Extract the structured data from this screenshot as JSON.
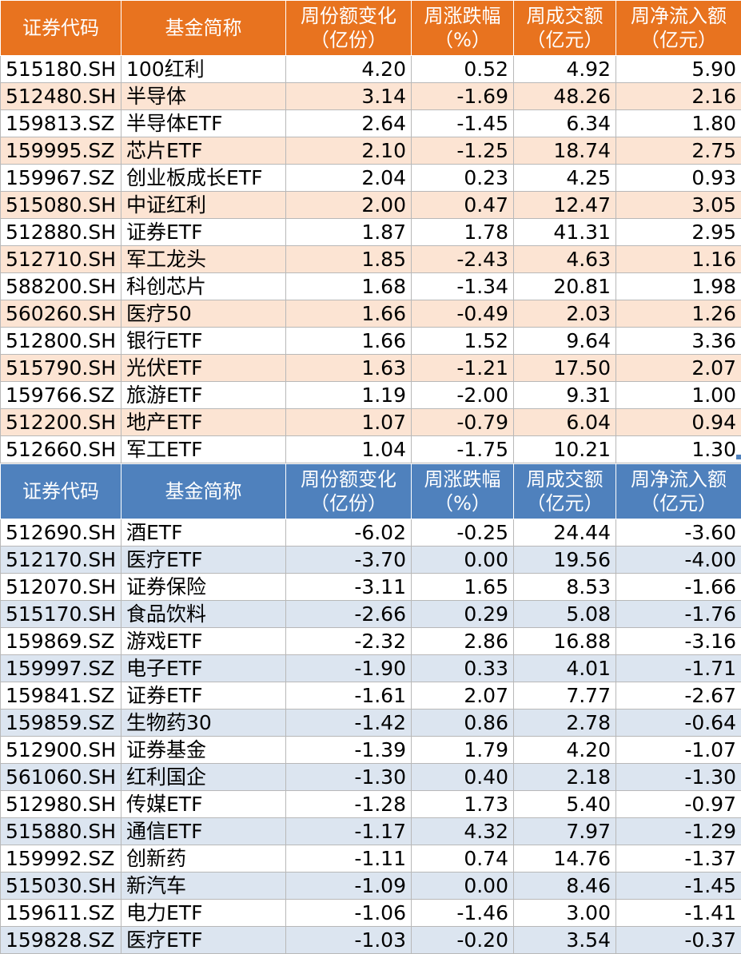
{
  "header": {
    "code": "证券代码",
    "name": "基金简称",
    "share_change": [
      "周份额变化",
      "（亿份）"
    ],
    "pct_change": [
      "周涨跌幅",
      "（%）"
    ],
    "volume": [
      "周成交额",
      "（亿元）"
    ],
    "net_inflow": [
      "周净流入额",
      "（亿元）"
    ]
  },
  "colors": {
    "top_header": "#e8731f",
    "top_alt_row": "#fce4d3",
    "bottom_header": "#4f81bd",
    "bottom_alt_row": "#dce5f0"
  },
  "top_rows": [
    [
      "515180.SH",
      "100红利",
      "4.20",
      "0.52",
      "4.92",
      "5.90"
    ],
    [
      "512480.SH",
      "半导体",
      "3.14",
      "-1.69",
      "48.26",
      "2.16"
    ],
    [
      "159813.SZ",
      "半导体ETF",
      "2.64",
      "-1.45",
      "6.34",
      "1.80"
    ],
    [
      "159995.SZ",
      "芯片ETF",
      "2.10",
      "-1.25",
      "18.74",
      "2.75"
    ],
    [
      "159967.SZ",
      "创业板成长ETF",
      "2.04",
      "0.23",
      "4.25",
      "0.93"
    ],
    [
      "515080.SH",
      "中证红利",
      "2.00",
      "0.47",
      "12.47",
      "3.05"
    ],
    [
      "512880.SH",
      "证券ETF",
      "1.87",
      "1.78",
      "41.31",
      "2.95"
    ],
    [
      "512710.SH",
      "军工龙头",
      "1.85",
      "-2.43",
      "4.63",
      "1.16"
    ],
    [
      "588200.SH",
      "科创芯片",
      "1.68",
      "-1.34",
      "20.81",
      "1.98"
    ],
    [
      "560260.SH",
      "医疗50",
      "1.66",
      "-0.49",
      "2.03",
      "1.26"
    ],
    [
      "512800.SH",
      "银行ETF",
      "1.66",
      "1.52",
      "9.64",
      "3.36"
    ],
    [
      "515790.SH",
      "光伏ETF",
      "1.63",
      "-1.21",
      "17.50",
      "2.07"
    ],
    [
      "159766.SZ",
      "旅游ETF",
      "1.19",
      "-2.00",
      "9.31",
      "1.00"
    ],
    [
      "512200.SH",
      "地产ETF",
      "1.07",
      "-0.79",
      "6.04",
      "0.94"
    ],
    [
      "512660.SH",
      "军工ETF",
      "1.04",
      "-1.75",
      "10.21",
      "1.30"
    ]
  ],
  "bottom_rows": [
    [
      "512690.SH",
      "酒ETF",
      "-6.02",
      "-0.25",
      "24.44",
      "-3.60"
    ],
    [
      "512170.SH",
      "医疗ETF",
      "-3.70",
      "0.00",
      "19.56",
      "-4.00"
    ],
    [
      "512070.SH",
      "证券保险",
      "-3.11",
      "1.65",
      "8.53",
      "-1.66"
    ],
    [
      "515170.SH",
      "食品饮料",
      "-2.66",
      "0.29",
      "5.08",
      "-1.76"
    ],
    [
      "159869.SZ",
      "游戏ETF",
      "-2.32",
      "2.86",
      "16.88",
      "-3.16"
    ],
    [
      "159997.SZ",
      "电子ETF",
      "-1.90",
      "0.33",
      "4.01",
      "-1.71"
    ],
    [
      "159841.SZ",
      "证券ETF",
      "-1.61",
      "2.07",
      "7.77",
      "-2.67"
    ],
    [
      "159859.SZ",
      "生物药30",
      "-1.42",
      "0.86",
      "2.78",
      "-0.64"
    ],
    [
      "512900.SH",
      "证券基金",
      "-1.39",
      "1.79",
      "4.20",
      "-1.07"
    ],
    [
      "561060.SH",
      "红利国企",
      "-1.30",
      "0.40",
      "2.18",
      "-1.30"
    ],
    [
      "512980.SH",
      "传媒ETF",
      "-1.28",
      "1.73",
      "5.40",
      "-0.97"
    ],
    [
      "515880.SH",
      "通信ETF",
      "-1.17",
      "4.32",
      "7.97",
      "-1.29"
    ],
    [
      "159992.SZ",
      "创新药",
      "-1.11",
      "0.74",
      "14.76",
      "-1.37"
    ],
    [
      "515030.SH",
      "新汽车",
      "-1.09",
      "0.00",
      "8.46",
      "-1.45"
    ],
    [
      "159611.SZ",
      "电力ETF",
      "-1.06",
      "-1.46",
      "3.00",
      "-1.41"
    ],
    [
      "159828.SZ",
      "医疗ETF",
      "-1.03",
      "-0.20",
      "3.54",
      "-0.37"
    ]
  ]
}
